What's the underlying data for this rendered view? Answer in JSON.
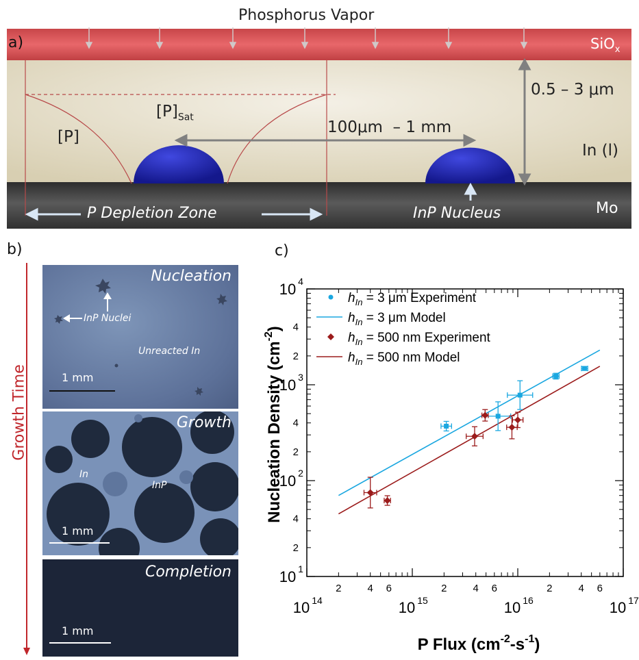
{
  "panel_a": {
    "letter": "a)",
    "top_label": "Phosphorus Vapor",
    "siox_main": "SiO",
    "siox_sub": "x",
    "thickness": "0.5 – 3 μm",
    "p_sat_main": "[P]",
    "p_sat_sub": "Sat",
    "p_label": "[P]",
    "spacing": "100μm  – 1 mm",
    "in_liquid": "In (l)",
    "mo": "Mo",
    "depletion": "P Depletion Zone",
    "nucleus": "InP Nucleus"
  },
  "panel_b": {
    "letter": "b)",
    "axis_label": "Growth Time",
    "photos": [
      {
        "title": "Nucleation",
        "scale": "1 mm",
        "notes": [
          "InP Nuclei",
          "Unreacted In"
        ]
      },
      {
        "title": "Growth",
        "scale": "1 mm",
        "notes": [
          "In",
          "InP"
        ]
      },
      {
        "title": "Completion",
        "scale": "1 mm",
        "notes": []
      }
    ]
  },
  "panel_c": {
    "letter": "c)"
  },
  "colors": {
    "blue": "#1aa7e0",
    "red": "#9b1b1b",
    "siox": "#d9474a",
    "droplet": "#1c22a8"
  },
  "chart_data": {
    "type": "scatter",
    "xlabel_prefix": "P Flux (cm",
    "xlabel_exp1": "-2",
    "xlabel_mid": "-s",
    "xlabel_exp2": "-1",
    "xlabel_suffix": ")",
    "ylabel_prefix": "Nucleation Density  (cm",
    "ylabel_exp": "-2",
    "ylabel_suffix": ")",
    "xscale": "log",
    "yscale": "log",
    "xlim": [
      100000000000000.0,
      1e+17
    ],
    "ylim": [
      10,
      10000
    ],
    "x_major_ticks": [
      {
        "base": "10",
        "exp": "14"
      },
      {
        "base": "10",
        "exp": "15"
      },
      {
        "base": "10",
        "exp": "16"
      },
      {
        "base": "10",
        "exp": "17"
      }
    ],
    "x_minor_labels": [
      "2",
      "4",
      "6"
    ],
    "y_major_ticks": [
      {
        "base": "10",
        "exp": "1"
      },
      {
        "base": "10",
        "exp": "2"
      },
      {
        "base": "10",
        "exp": "3"
      },
      {
        "base": "10",
        "exp": "4"
      }
    ],
    "y_minor_labels": [
      "2",
      "4"
    ],
    "legend_position": "top-left",
    "legend": [
      {
        "kind": "point",
        "color": "#1aa7e0",
        "label_pre": "h",
        "label_sub": "In",
        "label_post": " = 3 μm Experiment"
      },
      {
        "kind": "line",
        "color": "#1aa7e0",
        "label_pre": "h",
        "label_sub": "In",
        "label_post": " = 3 μm Model"
      },
      {
        "kind": "point",
        "color": "#9b1b1b",
        "label_pre": "h",
        "label_sub": "In",
        "label_post": " = 500 nm Experiment"
      },
      {
        "kind": "line",
        "color": "#9b1b1b",
        "label_pre": "h",
        "label_sub": "In",
        "label_post": " = 500 nm Model"
      }
    ],
    "series": [
      {
        "color": "#1aa7e0",
        "marker": "square",
        "points": [
          {
            "x": 2100000000000000.0,
            "y": 370,
            "xerr": 0.05,
            "yerr": 0.05
          },
          {
            "x": 6500000000000000.0,
            "y": 470,
            "xerr": 0.12,
            "yerr": 0.15
          },
          {
            "x": 1.05e+16,
            "y": 780,
            "xerr": 0.12,
            "yerr": 0.15
          },
          {
            "x": 2.3e+16,
            "y": 1230,
            "xerr": 0.03,
            "yerr": 0.03
          },
          {
            "x": 4.3e+16,
            "y": 1480,
            "xerr": 0.03,
            "yerr": 0.02
          }
        ]
      },
      {
        "color": "#9b1b1b",
        "marker": "diamond",
        "points": [
          {
            "x": 400000000000000.0,
            "y": 75,
            "xerr": 0.06,
            "yerr": 0.16
          },
          {
            "x": 580000000000000.0,
            "y": 62,
            "xerr": 0.03,
            "yerr": 0.05
          },
          {
            "x": 3900000000000000.0,
            "y": 290,
            "xerr": 0.08,
            "yerr": 0.1
          },
          {
            "x": 4900000000000000.0,
            "y": 480,
            "xerr": 0.03,
            "yerr": 0.06
          },
          {
            "x": 8800000000000000.0,
            "y": 360,
            "xerr": 0.05,
            "yerr": 0.12
          },
          {
            "x": 1e+16,
            "y": 430,
            "xerr": 0.05,
            "yerr": 0.08
          }
        ]
      }
    ],
    "lines": [
      {
        "color": "#1aa7e0",
        "x": [
          200000000000000.0,
          6e+16
        ],
        "y": [
          70,
          2300
        ]
      },
      {
        "color": "#9b1b1b",
        "x": [
          200000000000000.0,
          6e+16
        ],
        "y": [
          45,
          1560
        ]
      }
    ]
  }
}
